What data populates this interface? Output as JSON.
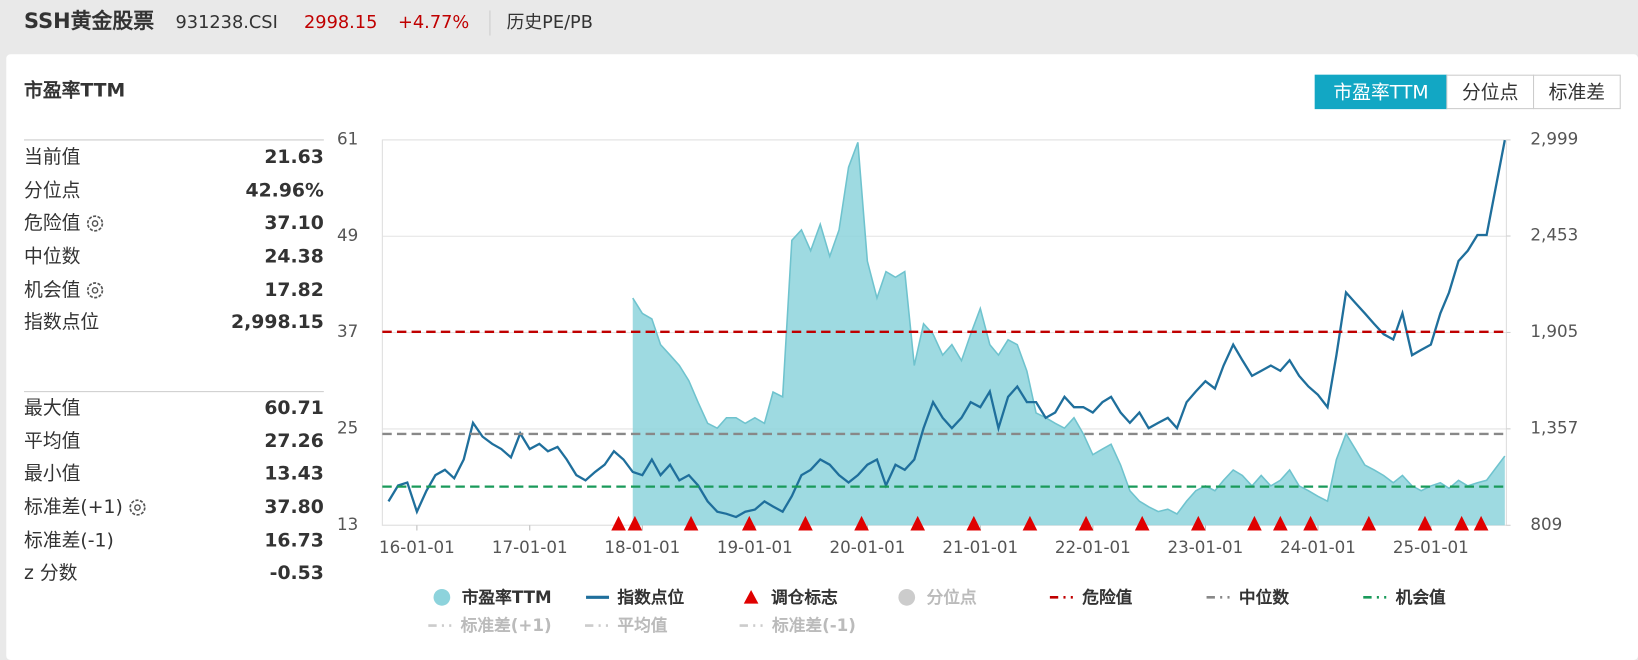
{
  "header": {
    "title": "SSH黄金股票",
    "code": "931238.CSI",
    "price": "2998.15",
    "change": "+4.77%",
    "tab": "历史PE/PB"
  },
  "panel": {
    "title": "市盈率TTM",
    "buttons": [
      "市盈率TTM",
      "分位点",
      "标准差"
    ],
    "active_button": 0
  },
  "stats": {
    "groups": [
      [
        {
          "label": "当前值",
          "value": "21.63"
        },
        {
          "label": "分位点",
          "value": "42.96%"
        },
        {
          "label": "危险值",
          "value": "37.10",
          "gear": true
        },
        {
          "label": "中位数",
          "value": "24.38"
        },
        {
          "label": "机会值",
          "value": "17.82",
          "gear": true
        },
        {
          "label": "指数点位",
          "value": "2,998.15"
        }
      ],
      [
        {
          "label": "最大值",
          "value": "60.71"
        },
        {
          "label": "平均值",
          "value": "27.26"
        },
        {
          "label": "最小值",
          "value": "13.43"
        },
        {
          "label": "标准差(+1)",
          "value": "37.80",
          "gear": true
        },
        {
          "label": "标准差(-1)",
          "value": "16.73"
        },
        {
          "label": "z 分数",
          "value": "-0.53"
        }
      ]
    ]
  },
  "chart_data": {
    "type": "line",
    "x": [
      "15-10-01",
      "15-11-01",
      "15-12-01",
      "16-01-01",
      "16-02-01",
      "16-03-01",
      "16-04-01",
      "16-05-01",
      "16-06-01",
      "16-07-01",
      "16-08-01",
      "16-09-01",
      "16-10-01",
      "16-11-01",
      "16-12-01",
      "17-01-01",
      "17-02-01",
      "17-03-01",
      "17-04-01",
      "17-05-01",
      "17-06-01",
      "17-07-01",
      "17-08-01",
      "17-09-01",
      "17-10-01",
      "17-11-01",
      "17-12-01",
      "18-01-01",
      "18-02-01",
      "18-03-01",
      "18-04-01",
      "18-05-01",
      "18-06-01",
      "18-07-01",
      "18-08-01",
      "18-09-01",
      "18-10-01",
      "18-11-01",
      "18-12-01",
      "19-01-01",
      "19-02-01",
      "19-03-01",
      "19-04-01",
      "19-05-01",
      "19-06-01",
      "19-07-01",
      "19-08-01",
      "19-09-01",
      "19-10-01",
      "19-11-01",
      "19-12-01",
      "20-01-01",
      "20-02-01",
      "20-03-01",
      "20-04-01",
      "20-05-01",
      "20-06-01",
      "20-07-01",
      "20-08-01",
      "20-09-01",
      "20-10-01",
      "20-11-01",
      "20-12-01",
      "21-01-01",
      "21-02-01",
      "21-03-01",
      "21-04-01",
      "21-05-01",
      "21-06-01",
      "21-07-01",
      "21-08-01",
      "21-09-01",
      "21-10-01",
      "21-11-01",
      "21-12-01",
      "22-01-01",
      "22-02-01",
      "22-03-01",
      "22-04-01",
      "22-05-01",
      "22-06-01",
      "22-07-01",
      "22-08-01",
      "22-09-01",
      "22-10-01",
      "22-11-01",
      "22-12-01",
      "23-01-01",
      "23-02-01",
      "23-03-01",
      "23-04-01",
      "23-05-01",
      "23-06-01",
      "23-07-01",
      "23-08-01",
      "23-09-01",
      "23-10-01",
      "23-11-01",
      "23-12-01",
      "24-01-01",
      "24-02-01",
      "24-03-01",
      "24-04-01",
      "24-05-01",
      "24-06-01",
      "24-07-01",
      "24-08-01",
      "24-09-01",
      "24-10-01",
      "24-11-01",
      "24-12-01",
      "25-01-01",
      "25-02-01",
      "25-03-01",
      "25-04-01",
      "25-05-01",
      "25-06-01",
      "25-07-01",
      "25-08-29"
    ],
    "xlim": [
      "15-09-11",
      "25-09-03"
    ],
    "xticks": [
      "16-01-01",
      "17-01-01",
      "18-01-01",
      "19-01-01",
      "20-01-01",
      "21-01-01",
      "22-01-01",
      "23-01-01",
      "24-01-01",
      "25-01-01"
    ],
    "ylim": [
      13,
      61
    ],
    "yticks": [
      13,
      25,
      37,
      49,
      61
    ],
    "y2lim": [
      809,
      2999
    ],
    "y2ticks": [
      809,
      {
        "value": 1357,
        "label": "1,357"
      },
      {
        "value": 1905,
        "label": "1,905"
      },
      {
        "value": 2453,
        "label": "2,453"
      },
      {
        "value": 2999,
        "label": "2,999"
      }
    ],
    "grid": true,
    "series": [
      {
        "name": "市盈率TTM",
        "type": "area",
        "color": "#8dd3dc",
        "values": [
          null,
          null,
          null,
          null,
          null,
          null,
          null,
          null,
          null,
          null,
          null,
          null,
          null,
          null,
          null,
          null,
          null,
          null,
          null,
          null,
          null,
          null,
          null,
          null,
          null,
          null,
          41.3,
          39.4,
          38.7,
          35.5,
          34.2,
          32.9,
          31.0,
          28.3,
          25.7,
          25.1,
          26.4,
          26.4,
          25.7,
          26.4,
          25.7,
          29.6,
          29.0,
          48.5,
          49.8,
          47.2,
          50.5,
          46.5,
          49.8,
          57.6,
          60.7,
          45.9,
          41.3,
          44.6,
          43.9,
          44.6,
          32.9,
          38.1,
          36.8,
          34.2,
          35.5,
          33.5,
          36.8,
          40.0,
          35.5,
          34.2,
          36.1,
          35.5,
          32.2,
          27.0,
          26.4,
          25.7,
          25.1,
          26.4,
          24.4,
          21.8,
          22.5,
          23.1,
          20.5,
          17.3,
          16.0,
          15.3,
          14.7,
          15.0,
          14.4,
          16.0,
          17.3,
          17.9,
          17.3,
          18.6,
          19.9,
          19.2,
          17.9,
          19.2,
          17.9,
          18.6,
          19.9,
          17.9,
          17.3,
          16.6,
          16.0,
          21.2,
          24.4,
          22.5,
          20.5,
          19.9,
          19.2,
          18.3,
          19.2,
          17.9,
          17.3,
          17.9,
          18.3,
          17.6,
          18.6,
          17.9,
          18.3,
          18.6,
          21.63
        ]
      },
      {
        "name": "指数点位",
        "color": "#1f6f9c",
        "axis": "y2",
        "values": [
          945,
          1035,
          1052,
          886,
          1005,
          1094,
          1124,
          1076,
          1183,
          1391,
          1313,
          1272,
          1242,
          1195,
          1331,
          1242,
          1272,
          1230,
          1254,
          1183,
          1094,
          1064,
          1112,
          1153,
          1230,
          1183,
          1112,
          1094,
          1183,
          1094,
          1153,
          1064,
          1094,
          1035,
          945,
          886,
          874,
          856,
          886,
          898,
          945,
          916,
          886,
          975,
          1094,
          1124,
          1183,
          1153,
          1094,
          1052,
          1094,
          1153,
          1183,
          1035,
          1153,
          1124,
          1183,
          1361,
          1509,
          1420,
          1361,
          1420,
          1509,
          1480,
          1569,
          1361,
          1539,
          1598,
          1509,
          1509,
          1420,
          1450,
          1539,
          1480,
          1480,
          1450,
          1509,
          1539,
          1450,
          1391,
          1450,
          1361,
          1391,
          1420,
          1361,
          1509,
          1569,
          1628,
          1586,
          1717,
          1836,
          1747,
          1658,
          1687,
          1717,
          1687,
          1747,
          1658,
          1598,
          1551,
          1480,
          1776,
          2132,
          2073,
          2014,
          1954,
          1895,
          1865,
          2014,
          1776,
          1806,
          1836,
          2014,
          2132,
          2311,
          2370,
          2459,
          2459,
          2998
        ]
      },
      {
        "name": "分位点",
        "color": "#cccccc",
        "visible": false
      }
    ],
    "markers": {
      "name": "调仓标志",
      "color": "#e00000",
      "x": [
        "17-10-16",
        "17-12-08",
        "18-06-08",
        "18-12-14",
        "19-06-14",
        "19-12-13",
        "20-06-12",
        "20-12-11",
        "21-06-11",
        "21-12-10",
        "22-06-10",
        "22-12-09",
        "23-06-09",
        "23-09-01",
        "23-12-08",
        "24-06-14",
        "24-12-13",
        "25-04-11",
        "25-06-13"
      ]
    },
    "ref_lines": [
      {
        "name": "危险值",
        "color": "#c00000",
        "value": 37.1
      },
      {
        "name": "中位数",
        "color": "#888888",
        "value": 24.38
      },
      {
        "name": "机会值",
        "color": "#1a9a5a",
        "value": 17.82
      },
      {
        "name": "标准差(+1)",
        "color": "#cccccc",
        "value": 37.8,
        "visible": false
      },
      {
        "name": "平均值",
        "color": "#cccccc",
        "value": 27.26,
        "visible": false
      },
      {
        "name": "标准差(-1)",
        "color": "#cccccc",
        "value": 16.73,
        "visible": false
      }
    ]
  }
}
